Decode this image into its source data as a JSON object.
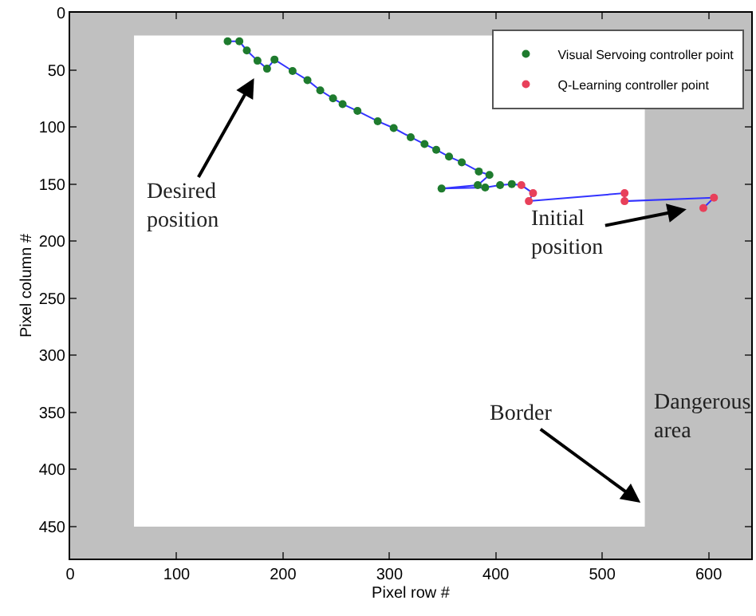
{
  "chart_data": {
    "type": "scatter",
    "xlabel": "Pixel row #",
    "ylabel": "Pixel column #",
    "xlim": [
      0,
      640
    ],
    "ylim": [
      478,
      0
    ],
    "xticks": [
      0,
      100,
      200,
      300,
      400,
      500,
      600
    ],
    "yticks": [
      0,
      50,
      100,
      150,
      200,
      250,
      300,
      350,
      400,
      450
    ],
    "grid": false,
    "legend": "top right",
    "series": [
      {
        "type": "line",
        "color": "#3333ff",
        "marker": "none",
        "x": [
          595,
          605,
          521,
          521,
          431,
          435,
          424,
          415,
          404,
          390,
          349,
          383,
          394,
          384,
          368,
          356,
          344,
          333,
          320,
          304,
          289,
          270,
          256,
          247,
          235,
          223,
          209,
          192,
          185,
          176,
          166,
          159,
          148
        ],
        "values": [
          171,
          162,
          165,
          158,
          165,
          158,
          151,
          150,
          151,
          153,
          154,
          151,
          142,
          139,
          131,
          126,
          120,
          115,
          109,
          101,
          95,
          86,
          80,
          75,
          68,
          59,
          51,
          41,
          49,
          42,
          33,
          25,
          25
        ]
      },
      {
        "name": "Visual Servoing controller point",
        "color": "#1e7b2e",
        "marker": "circle",
        "x": [
          415,
          404,
          390,
          349,
          383,
          394,
          384,
          368,
          356,
          344,
          333,
          320,
          304,
          289,
          270,
          256,
          247,
          235,
          223,
          209,
          192,
          185,
          176,
          166,
          159,
          148
        ],
        "values": [
          150,
          151,
          153,
          154,
          151,
          142,
          139,
          131,
          126,
          120,
          115,
          109,
          101,
          95,
          86,
          80,
          75,
          68,
          59,
          51,
          41,
          49,
          42,
          33,
          25,
          25
        ]
      },
      {
        "name": "Q-Learning controller point",
        "color": "#e8405a",
        "marker": "circle",
        "x": [
          595,
          605,
          521,
          521,
          431,
          435,
          424
        ],
        "values": [
          171,
          162,
          165,
          158,
          165,
          158,
          151
        ]
      }
    ],
    "bands": [
      {
        "axis": "x",
        "from": 0,
        "to": 60,
        "color": "#c0c0c0"
      },
      {
        "axis": "x",
        "from": 540,
        "to": 640,
        "color": "#c0c0c0"
      },
      {
        "axis": "y",
        "from": 0,
        "to": 20,
        "color": "#c0c0c0"
      },
      {
        "axis": "y",
        "from": 450,
        "to": 478,
        "color": "#c0c0c0"
      }
    ],
    "annotations": [
      "Desired position",
      "Initial position",
      {
        "text": "Border",
        "x": 536,
        "y": 429
      },
      "Dangerous area"
    ]
  }
}
